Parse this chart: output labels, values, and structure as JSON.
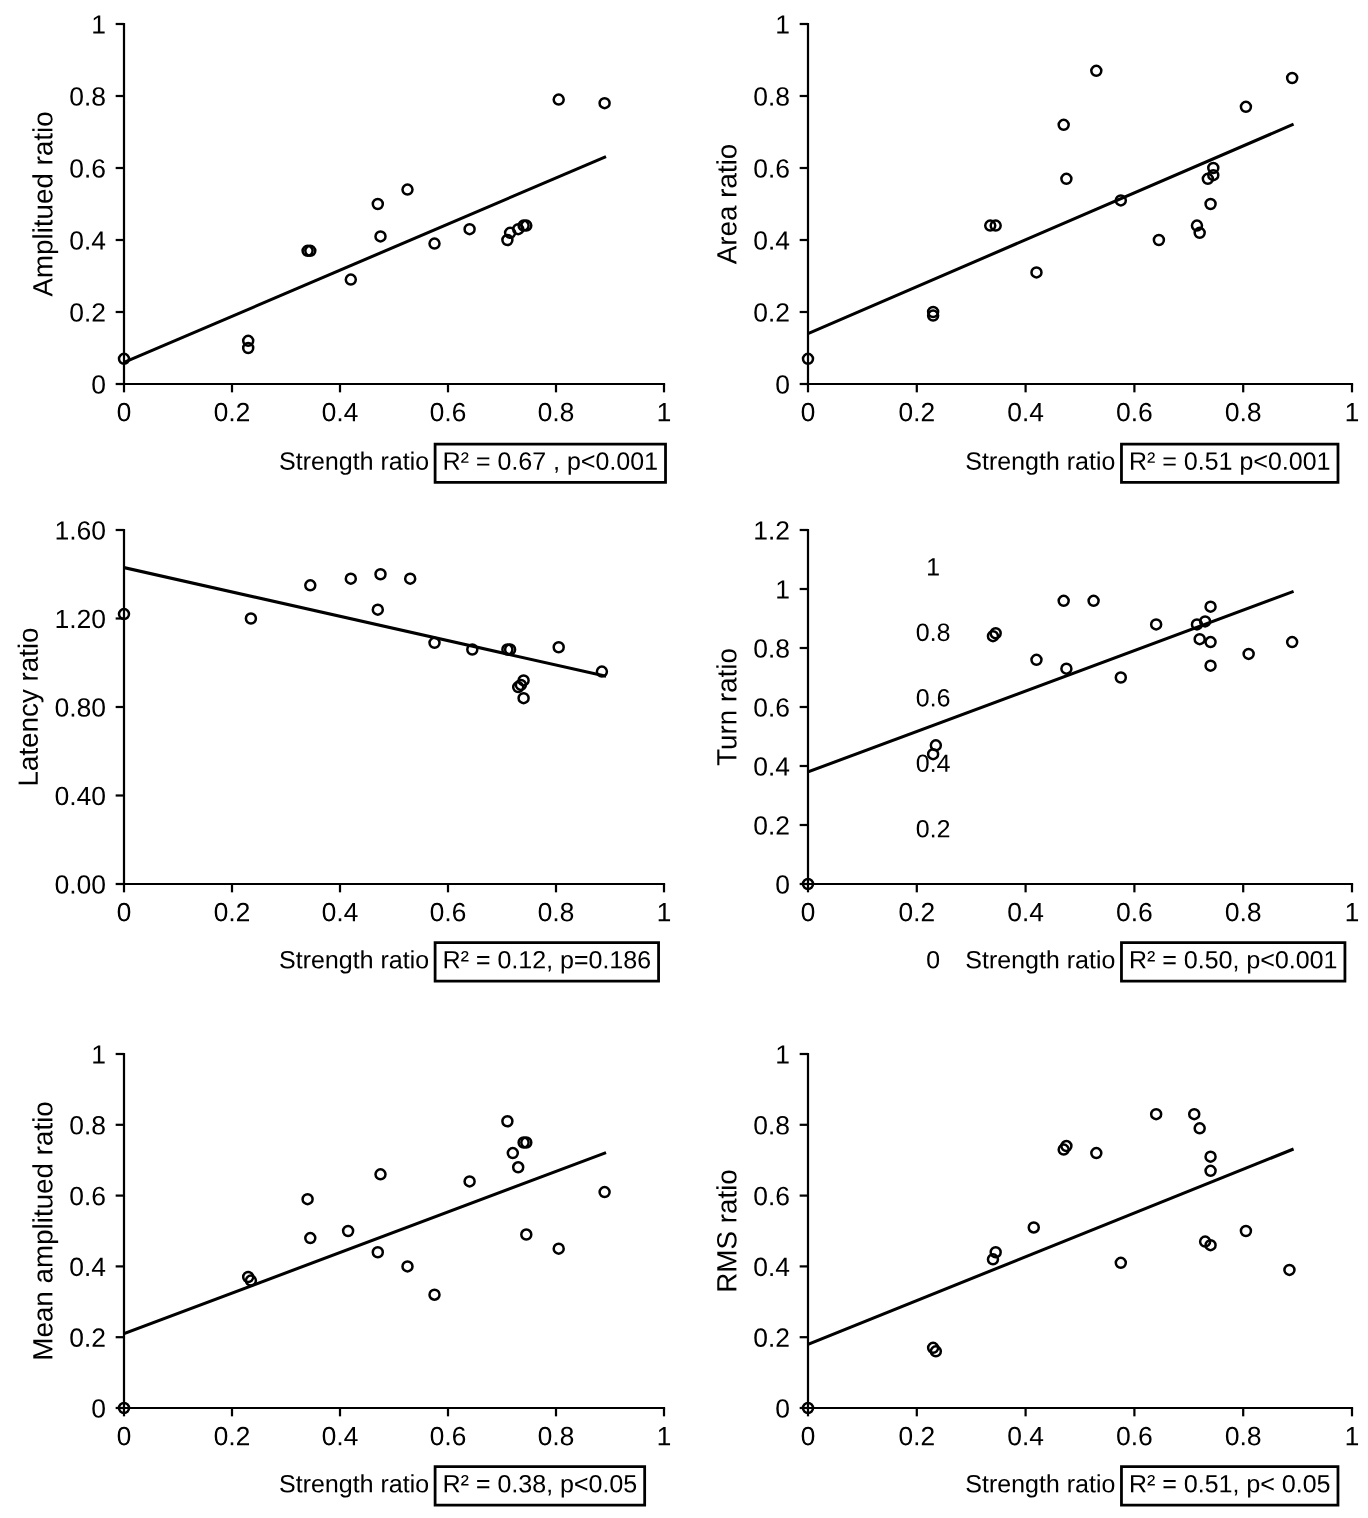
{
  "chart_data": [
    {
      "type": "scatter",
      "xlabel": "Strength ratio",
      "ylabel": "Amplitued ratio",
      "xlim": [
        0,
        1
      ],
      "ylim": [
        0,
        1
      ],
      "xticks": [
        0,
        0.2,
        0.4,
        0.6,
        0.8,
        1
      ],
      "yticks": [
        0,
        0.2,
        0.4,
        0.6,
        0.8,
        1
      ],
      "grid": false,
      "marker": "circle",
      "annotations": [
        "R² = 0.67 , p<0.001"
      ],
      "series": [
        {
          "type": "scatter",
          "color": "#000000",
          "x": [
            0,
            0.23,
            0.23,
            0.34,
            0.345,
            0.42,
            0.47,
            0.475,
            0.525,
            0.575,
            0.64,
            0.71,
            0.715,
            0.73,
            0.74,
            0.745,
            0.805,
            0.89
          ],
          "values": [
            0.07,
            0.12,
            0.1,
            0.37,
            0.37,
            0.29,
            0.5,
            0.41,
            0.54,
            0.39,
            0.43,
            0.4,
            0.42,
            0.43,
            0.44,
            0.44,
            0.79,
            0.78
          ]
        },
        {
          "type": "line",
          "marker": "none",
          "color": "#000000",
          "x": [
            0,
            0.89
          ],
          "values": [
            0.06,
            0.63
          ]
        }
      ]
    },
    {
      "type": "scatter",
      "xlabel": "Strength ratio",
      "ylabel": "Area ratio",
      "xlim": [
        0,
        1
      ],
      "ylim": [
        0,
        1
      ],
      "xticks": [
        0,
        0.2,
        0.4,
        0.6,
        0.8,
        1
      ],
      "yticks": [
        0,
        0.2,
        0.4,
        0.6,
        0.8,
        1
      ],
      "grid": false,
      "marker": "circle",
      "annotations": [
        "R² = 0.51 p<0.001"
      ],
      "series": [
        {
          "type": "scatter",
          "color": "#000000",
          "x": [
            0,
            0.23,
            0.23,
            0.335,
            0.345,
            0.42,
            0.47,
            0.475,
            0.53,
            0.575,
            0.645,
            0.715,
            0.72,
            0.735,
            0.74,
            0.745,
            0.745,
            0.805,
            0.89
          ],
          "values": [
            0.07,
            0.2,
            0.19,
            0.44,
            0.44,
            0.31,
            0.72,
            0.57,
            0.87,
            0.51,
            0.4,
            0.44,
            0.42,
            0.57,
            0.5,
            0.6,
            0.58,
            0.77,
            0.85
          ]
        },
        {
          "type": "line",
          "marker": "none",
          "color": "#000000",
          "x": [
            0,
            0.89
          ],
          "values": [
            0.14,
            0.72
          ]
        }
      ]
    },
    {
      "type": "scatter",
      "xlabel": "Strength ratio",
      "ylabel": "Latency ratio",
      "xlim": [
        0,
        1
      ],
      "ylim": [
        0,
        1.6
      ],
      "xticks": [
        0,
        0.2,
        0.4,
        0.6,
        0.8,
        1
      ],
      "yticks": [
        {
          "value": 0,
          "label": "0.00"
        },
        {
          "value": 0.4,
          "label": "0.40"
        },
        {
          "value": 0.8,
          "label": "0.80"
        },
        {
          "value": 1.2,
          "label": "1.20"
        },
        {
          "value": 1.6,
          "label": "1.60"
        }
      ],
      "grid": false,
      "marker": "circle",
      "annotations": [
        "R² = 0.12, p=0.186"
      ],
      "series": [
        {
          "type": "scatter",
          "color": "#000000",
          "x": [
            0,
            0.235,
            0.345,
            0.42,
            0.47,
            0.475,
            0.53,
            0.575,
            0.645,
            0.71,
            0.715,
            0.73,
            0.74,
            0.735,
            0.74,
            0.805,
            0.885
          ],
          "values": [
            1.22,
            1.2,
            1.35,
            1.38,
            1.24,
            1.4,
            1.38,
            1.09,
            1.06,
            1.06,
            1.06,
            0.89,
            0.92,
            0.9,
            0.84,
            1.07,
            0.96
          ]
        },
        {
          "type": "line",
          "marker": "none",
          "color": "#000000",
          "x": [
            0,
            0.89
          ],
          "values": [
            1.43,
            0.94
          ]
        }
      ]
    },
    {
      "type": "scatter",
      "xlabel": "Strength ratio",
      "ylabel": "Turn ratio",
      "xlim": [
        0,
        1
      ],
      "ylim": [
        0,
        1.2
      ],
      "xticks": [
        0,
        0.2,
        0.4,
        0.6,
        0.8,
        1
      ],
      "yticks": [
        0,
        0.2,
        0.4,
        0.6,
        0.8,
        1,
        1.2
      ],
      "grid": false,
      "marker": "circle",
      "annotations": [
        "R² = 0.50, p<0.001",
        "1",
        "0.8",
        "0.6",
        "0.4",
        "0.2",
        "0"
      ],
      "series": [
        {
          "type": "scatter",
          "color": "#000000",
          "x": [
            0,
            0.23,
            0.235,
            0.34,
            0.345,
            0.42,
            0.47,
            0.475,
            0.525,
            0.575,
            0.64,
            0.715,
            0.72,
            0.73,
            0.74,
            0.74,
            0.74,
            0.81,
            0.89
          ],
          "values": [
            0,
            0.44,
            0.47,
            0.84,
            0.85,
            0.76,
            0.96,
            0.73,
            0.96,
            0.7,
            0.88,
            0.88,
            0.83,
            0.89,
            0.94,
            0.82,
            0.74,
            0.78,
            0.82
          ]
        },
        {
          "type": "line",
          "marker": "none",
          "color": "#000000",
          "x": [
            0,
            0.89
          ],
          "values": [
            0.38,
            0.99
          ]
        }
      ]
    },
    {
      "type": "scatter",
      "xlabel": "Strength ratio",
      "ylabel": "Mean amplitued ratio",
      "xlim": [
        0,
        1
      ],
      "ylim": [
        0,
        1
      ],
      "xticks": [
        0,
        0.2,
        0.4,
        0.6,
        0.8,
        1
      ],
      "yticks": [
        0,
        0.2,
        0.4,
        0.6,
        0.8,
        1
      ],
      "grid": false,
      "marker": "circle",
      "annotations": [
        "R² = 0.38, p<0.05"
      ],
      "series": [
        {
          "type": "scatter",
          "color": "#000000",
          "x": [
            0,
            0.23,
            0.235,
            0.34,
            0.345,
            0.415,
            0.47,
            0.475,
            0.525,
            0.575,
            0.64,
            0.71,
            0.72,
            0.73,
            0.74,
            0.745,
            0.745,
            0.805,
            0.89
          ],
          "values": [
            0,
            0.37,
            0.36,
            0.59,
            0.48,
            0.5,
            0.44,
            0.66,
            0.4,
            0.32,
            0.64,
            0.81,
            0.72,
            0.68,
            0.75,
            0.75,
            0.49,
            0.45,
            0.61
          ]
        },
        {
          "type": "line",
          "marker": "none",
          "color": "#000000",
          "x": [
            0,
            0.89
          ],
          "values": [
            0.21,
            0.72
          ]
        }
      ]
    },
    {
      "type": "scatter",
      "xlabel": "Strength ratio",
      "ylabel": "RMS ratio",
      "xlim": [
        0,
        1
      ],
      "ylim": [
        0,
        1
      ],
      "xticks": [
        0,
        0.2,
        0.4,
        0.6,
        0.8,
        1
      ],
      "yticks": [
        0,
        0.2,
        0.4,
        0.6,
        0.8,
        1
      ],
      "grid": false,
      "marker": "circle",
      "annotations": [
        "R² = 0.51, p< 0.05"
      ],
      "series": [
        {
          "type": "scatter",
          "color": "#000000",
          "x": [
            0,
            0.23,
            0.235,
            0.34,
            0.345,
            0.415,
            0.47,
            0.475,
            0.53,
            0.575,
            0.64,
            0.71,
            0.72,
            0.73,
            0.74,
            0.74,
            0.74,
            0.805,
            0.885
          ],
          "values": [
            0,
            0.17,
            0.16,
            0.42,
            0.44,
            0.51,
            0.73,
            0.74,
            0.72,
            0.41,
            0.83,
            0.83,
            0.79,
            0.47,
            0.67,
            0.71,
            0.46,
            0.5,
            0.39
          ]
        },
        {
          "type": "line",
          "marker": "none",
          "color": "#000000",
          "x": [
            0,
            0.89
          ],
          "values": [
            0.18,
            0.73
          ]
        }
      ]
    }
  ]
}
